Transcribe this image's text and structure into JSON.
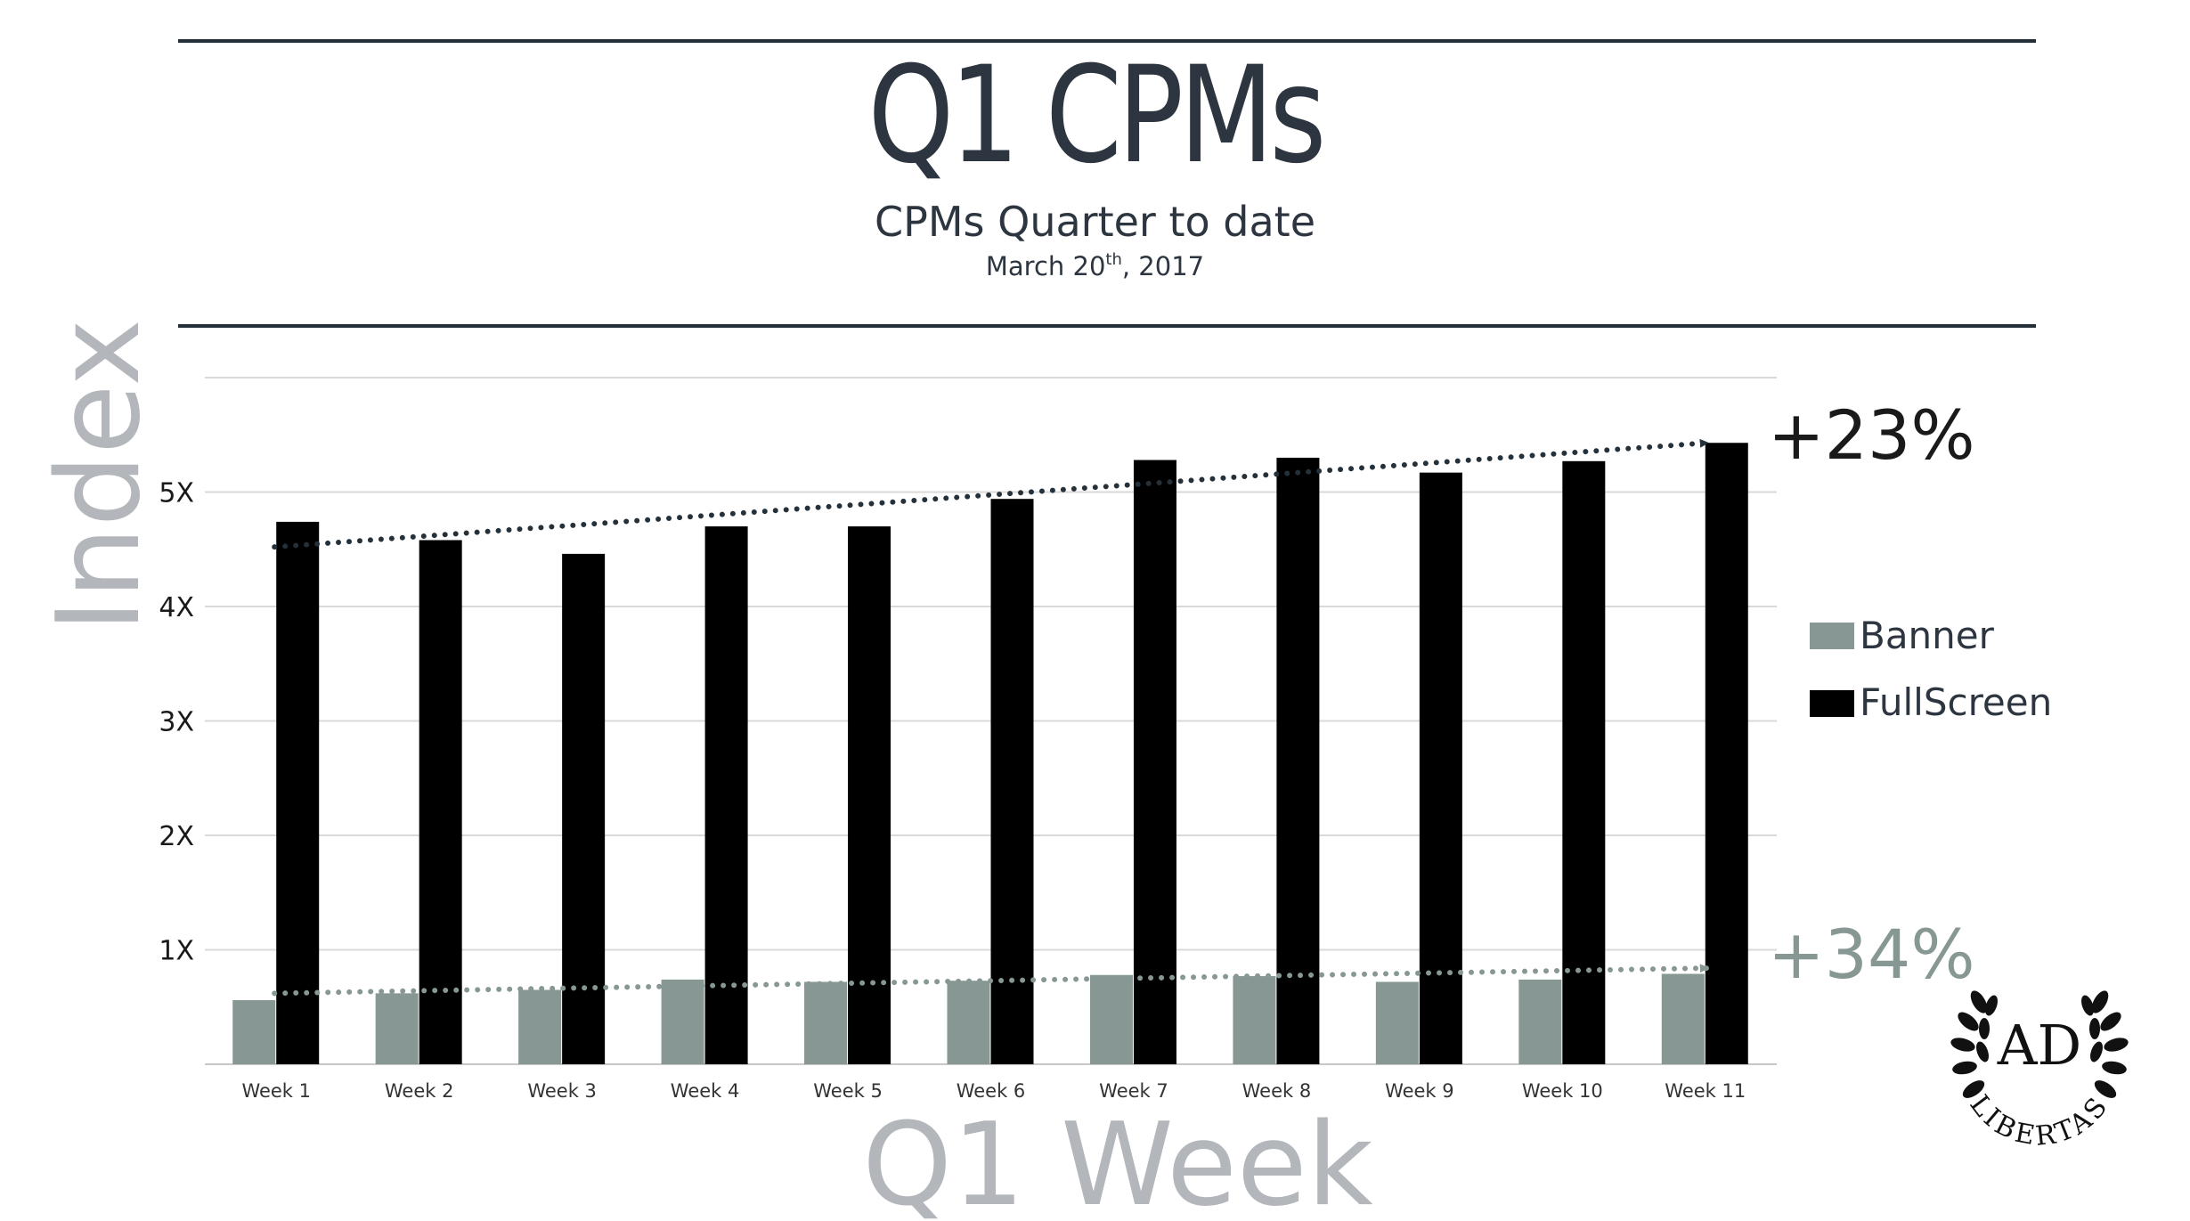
{
  "header": {
    "title": "Q1 CPMs",
    "subtitle": "CPMs Quarter to date",
    "date_main": "March 20",
    "date_sup": "th",
    "date_year": ", 2017"
  },
  "annotations": {
    "fullscreen_change": "+23%",
    "banner_change": "+34%"
  },
  "logo": {
    "monogram": "AD",
    "text": "LIBERTAS"
  },
  "colors": {
    "banner": "#869794",
    "fullscreen": "#000000",
    "trend_fullscreen": "#25313a",
    "axis_title": "#b3b6bb",
    "grid": "#d9d9d9"
  },
  "chart_data": {
    "type": "bar",
    "xlabel": "Q1 Week",
    "ylabel": "Index",
    "ylim": [
      0,
      6
    ],
    "yticks": [
      {
        "value": 1,
        "label": "1X"
      },
      {
        "value": 2,
        "label": "2X"
      },
      {
        "value": 3,
        "label": "3X"
      },
      {
        "value": 4,
        "label": "4X"
      },
      {
        "value": 5,
        "label": "5X"
      }
    ],
    "grid": true,
    "legend_position": "right",
    "categories": [
      "Week 1",
      "Week 2",
      "Week 3",
      "Week 4",
      "Week 5",
      "Week 6",
      "Week 7",
      "Week 8",
      "Week 9",
      "Week 10",
      "Week 11"
    ],
    "series": [
      {
        "name": "Banner",
        "values": [
          0.56,
          0.62,
          0.65,
          0.74,
          0.72,
          0.73,
          0.78,
          0.77,
          0.72,
          0.74,
          0.79
        ]
      },
      {
        "name": "FullScreen",
        "values": [
          4.74,
          4.58,
          4.46,
          4.7,
          4.7,
          4.94,
          5.28,
          5.3,
          5.17,
          5.27,
          5.43
        ]
      }
    ],
    "trendlines": [
      {
        "series": "FullScreen",
        "start": 4.52,
        "end": 5.43
      },
      {
        "series": "Banner",
        "start": 0.62,
        "end": 0.84
      }
    ]
  }
}
